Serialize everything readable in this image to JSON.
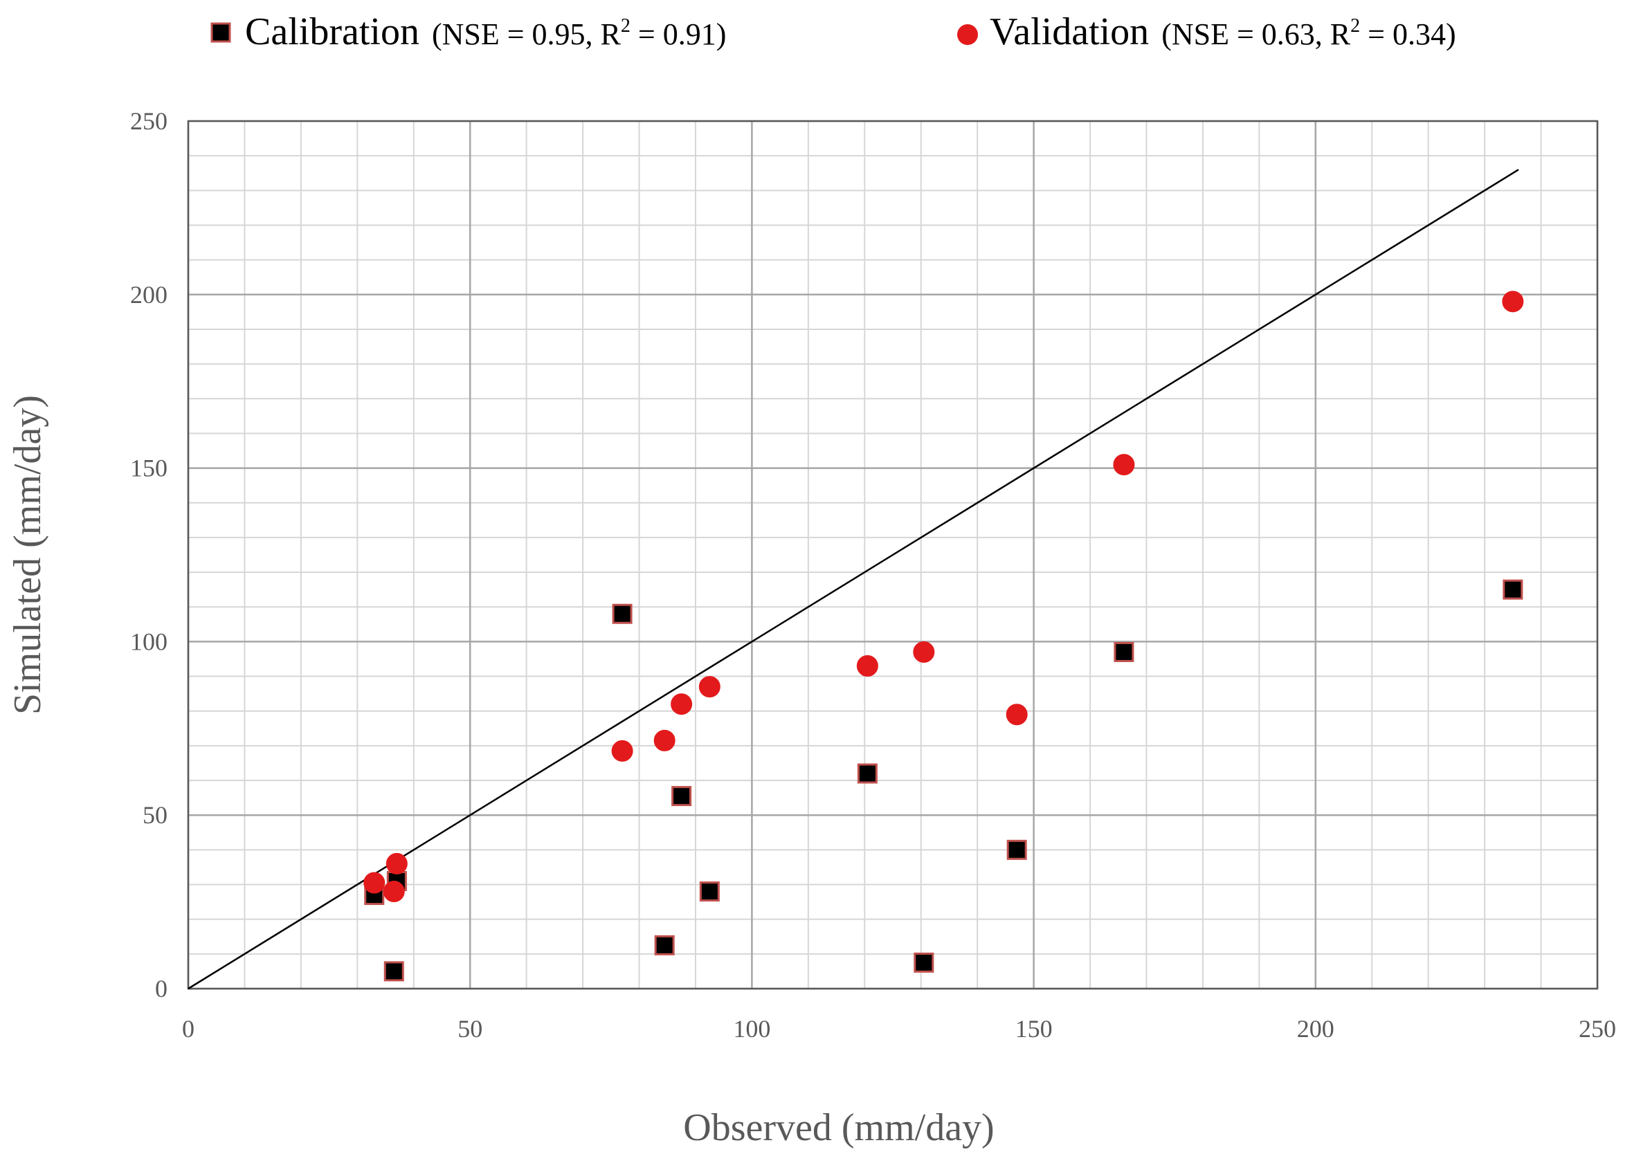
{
  "chart_data": {
    "type": "scatter",
    "title": "",
    "xlabel": "Observed (mm/day)",
    "ylabel": "Simulated (mm/day)",
    "xlim": [
      0,
      250
    ],
    "ylim": [
      0,
      250
    ],
    "x_ticks": [
      0,
      50,
      100,
      150,
      200,
      250
    ],
    "y_ticks": [
      0,
      50,
      100,
      150,
      200,
      250
    ],
    "minor_x_step": 10,
    "minor_y_step": 10,
    "grid": true,
    "legend_position": "top",
    "reference_line": {
      "label": "1:1 line",
      "x": [
        0,
        236
      ],
      "y": [
        0,
        236
      ],
      "color": "#000000"
    },
    "series": [
      {
        "name": "Calibration",
        "stats": {
          "prefix": "(NSE = 0.95, R",
          "sup": "2",
          "suffix": " = 0.91)"
        },
        "marker": "square",
        "fill": "#000000",
        "edge": "#c0504d",
        "points": [
          {
            "x": 33,
            "y": 27
          },
          {
            "x": 37,
            "y": 31
          },
          {
            "x": 36.5,
            "y": 5
          },
          {
            "x": 77,
            "y": 108
          },
          {
            "x": 84.5,
            "y": 12.5
          },
          {
            "x": 87.5,
            "y": 55.5
          },
          {
            "x": 92.5,
            "y": 28
          },
          {
            "x": 120.5,
            "y": 62
          },
          {
            "x": 130.5,
            "y": 7.5
          },
          {
            "x": 147,
            "y": 40
          },
          {
            "x": 166,
            "y": 97
          },
          {
            "x": 235,
            "y": 115
          }
        ]
      },
      {
        "name": "Validation",
        "stats": {
          "prefix": "(NSE = 0.63, R",
          "sup": "2",
          "suffix": " = 0.34)"
        },
        "marker": "circle",
        "fill": "#e31a1c",
        "edge": "#e31a1c",
        "points": [
          {
            "x": 33,
            "y": 30.5
          },
          {
            "x": 37,
            "y": 36
          },
          {
            "x": 36.5,
            "y": 28
          },
          {
            "x": 77,
            "y": 68.5
          },
          {
            "x": 84.5,
            "y": 71.5
          },
          {
            "x": 87.5,
            "y": 82
          },
          {
            "x": 92.5,
            "y": 87
          },
          {
            "x": 120.5,
            "y": 93
          },
          {
            "x": 130.5,
            "y": 97
          },
          {
            "x": 147,
            "y": 79
          },
          {
            "x": 166,
            "y": 151
          },
          {
            "x": 235,
            "y": 198
          }
        ]
      }
    ]
  }
}
